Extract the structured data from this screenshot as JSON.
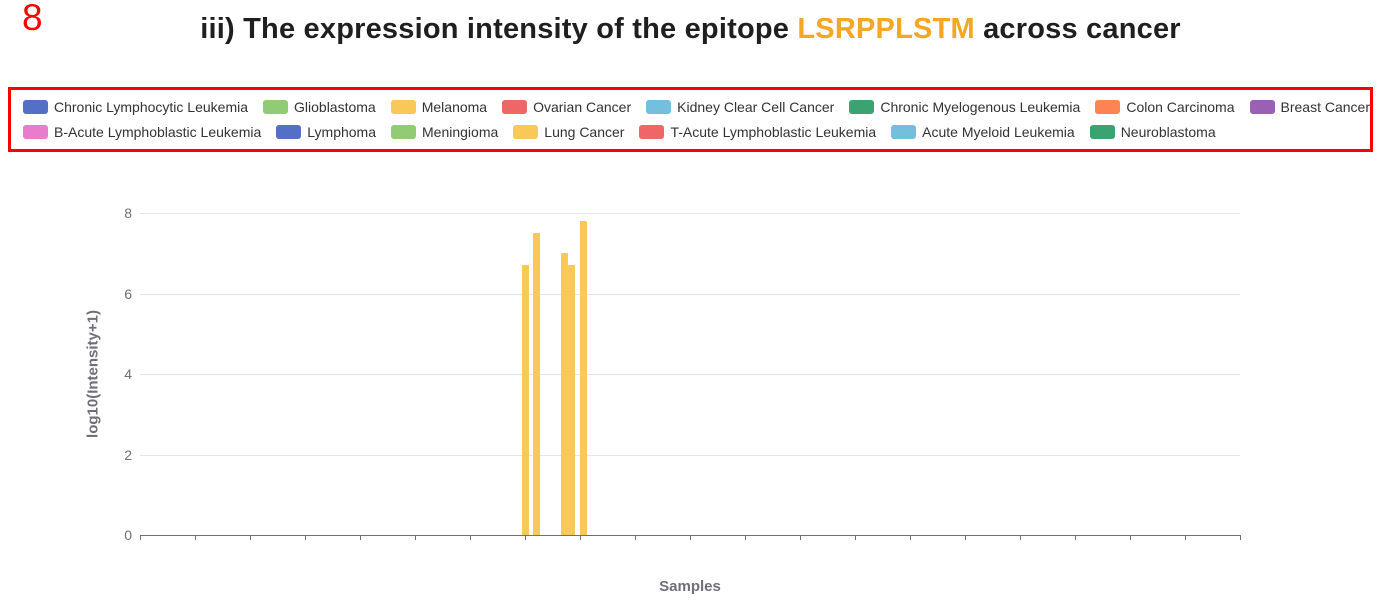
{
  "annotation": {
    "number": "8",
    "color": "#ff0000",
    "box_color": "#ff0000"
  },
  "title": {
    "prefix": "iii) The expression intensity of the epitope ",
    "epitope": "LSRPPLSTM",
    "suffix": " across cancer",
    "epitope_color": "#f5a623",
    "text_color": "#1f1f1f"
  },
  "legend": {
    "rows": [
      [
        {
          "label": "Chronic Lymphocytic Leukemia",
          "color": "#5470c6"
        },
        {
          "label": "Glioblastoma",
          "color": "#91cc75"
        },
        {
          "label": "Melanoma",
          "color": "#fac858"
        },
        {
          "label": "Ovarian Cancer",
          "color": "#ee6666"
        },
        {
          "label": "Kidney Clear Cell Cancer",
          "color": "#73c0de"
        },
        {
          "label": "Chronic Myelogenous Leukemia",
          "color": "#3ba272"
        },
        {
          "label": "Colon Carcinoma",
          "color": "#fc8452"
        },
        {
          "label": "Breast Cancer",
          "color": "#9a60b4"
        }
      ],
      [
        {
          "label": "B-Acute Lymphoblastic Leukemia",
          "color": "#ea7ccc"
        },
        {
          "label": "Lymphoma",
          "color": "#5470c6"
        },
        {
          "label": "Meningioma",
          "color": "#91cc75"
        },
        {
          "label": "Lung Cancer",
          "color": "#fac858"
        },
        {
          "label": "T-Acute Lymphoblastic Leukemia",
          "color": "#ee6666"
        },
        {
          "label": "Acute Myeloid Leukemia",
          "color": "#73c0de"
        },
        {
          "label": "Neuroblastoma",
          "color": "#3ba272"
        }
      ]
    ]
  },
  "chart_data": {
    "type": "bar",
    "title": "iii) The expression intensity of the epitope LSRPPLSTM across cancer",
    "xlabel": "Samples",
    "ylabel": "log10(Intensity+1)",
    "ylim": [
      0,
      8
    ],
    "yticks": [
      0,
      2,
      4,
      6,
      8
    ],
    "x_tick_count": 20,
    "grid": true,
    "legend_position": "top",
    "gridline_color": "#E0E6F1",
    "axis_color": "#6E7079",
    "series": [
      {
        "name": "samples",
        "color": "#fac858",
        "points": [
          {
            "x_frac": 0.35,
            "value": 6.7
          },
          {
            "x_frac": 0.36,
            "value": 7.5
          },
          {
            "x_frac": 0.386,
            "value": 7.0
          },
          {
            "x_frac": 0.392,
            "value": 6.7
          },
          {
            "x_frac": 0.403,
            "value": 7.8
          }
        ]
      }
    ]
  }
}
